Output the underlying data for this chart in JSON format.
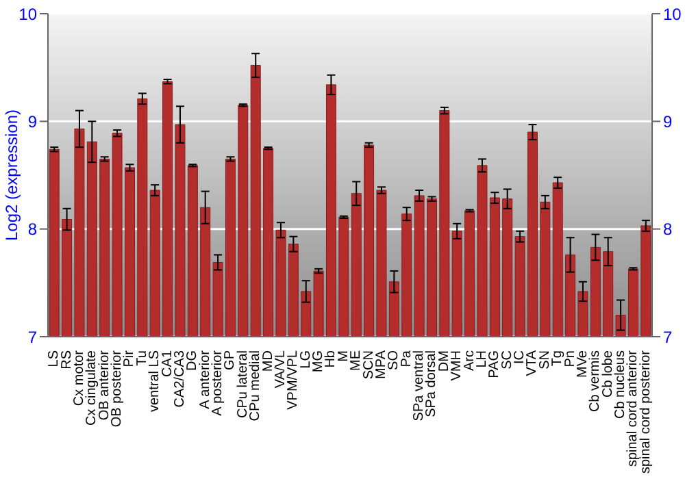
{
  "chart_data": {
    "type": "bar",
    "ylabel": "Log2 (expression)",
    "categories": [
      "LS",
      "RS",
      "Cx motor",
      "Cx cingulate",
      "OB anterior",
      "OB posterior",
      "Pir",
      "Tu",
      "ventral LS",
      "CA1",
      "CA2/CA3",
      "DG",
      "A anterior",
      "A posterior",
      "GP",
      "CPu lateral",
      "CPu medial",
      "MD",
      "VA/VL",
      "VPM/VPL",
      "LG",
      "MG",
      "Hb",
      "M",
      "ME",
      "SCN",
      "MPA",
      "SO",
      "Pa",
      "SPa ventral",
      "SPa dorsal",
      "DM",
      "VMH",
      "Arc",
      "LH",
      "PAG",
      "SC",
      "IC",
      "VTA",
      "SN",
      "Tg",
      "Pn",
      "MVe",
      "Cb vermis",
      "Cb lobe",
      "Cb nucleus",
      "spinal cord anterior",
      "spinal cord posterior"
    ],
    "values": [
      8.74,
      8.09,
      8.93,
      8.81,
      8.65,
      8.89,
      8.57,
      9.21,
      8.36,
      9.37,
      8.97,
      8.59,
      8.2,
      7.69,
      8.65,
      9.15,
      9.52,
      8.75,
      7.99,
      7.86,
      7.42,
      7.61,
      9.34,
      8.11,
      8.33,
      8.78,
      8.36,
      7.51,
      8.14,
      8.31,
      8.28,
      9.1,
      7.98,
      8.17,
      8.59,
      8.29,
      8.28,
      7.93,
      8.9,
      8.25,
      8.43,
      7.76,
      7.42,
      7.83,
      7.79,
      7.2,
      7.63,
      8.03
    ],
    "errors": [
      0.02,
      0.1,
      0.17,
      0.19,
      0.02,
      0.03,
      0.03,
      0.05,
      0.05,
      0.02,
      0.17,
      0.01,
      0.15,
      0.07,
      0.02,
      0.01,
      0.11,
      0.01,
      0.07,
      0.07,
      0.1,
      0.02,
      0.09,
      0.01,
      0.11,
      0.02,
      0.03,
      0.1,
      0.06,
      0.05,
      0.02,
      0.03,
      0.07,
      0.01,
      0.06,
      0.05,
      0.09,
      0.05,
      0.07,
      0.06,
      0.05,
      0.16,
      0.09,
      0.12,
      0.13,
      0.14,
      0.01,
      0.05
    ],
    "color": "#b32d2d",
    "ylim": [
      7,
      10
    ],
    "yticks": [
      7,
      8,
      9,
      10
    ],
    "y2lim": [
      7,
      10
    ],
    "y2ticks": [
      7,
      8,
      9,
      10
    ],
    "grid": "y"
  }
}
